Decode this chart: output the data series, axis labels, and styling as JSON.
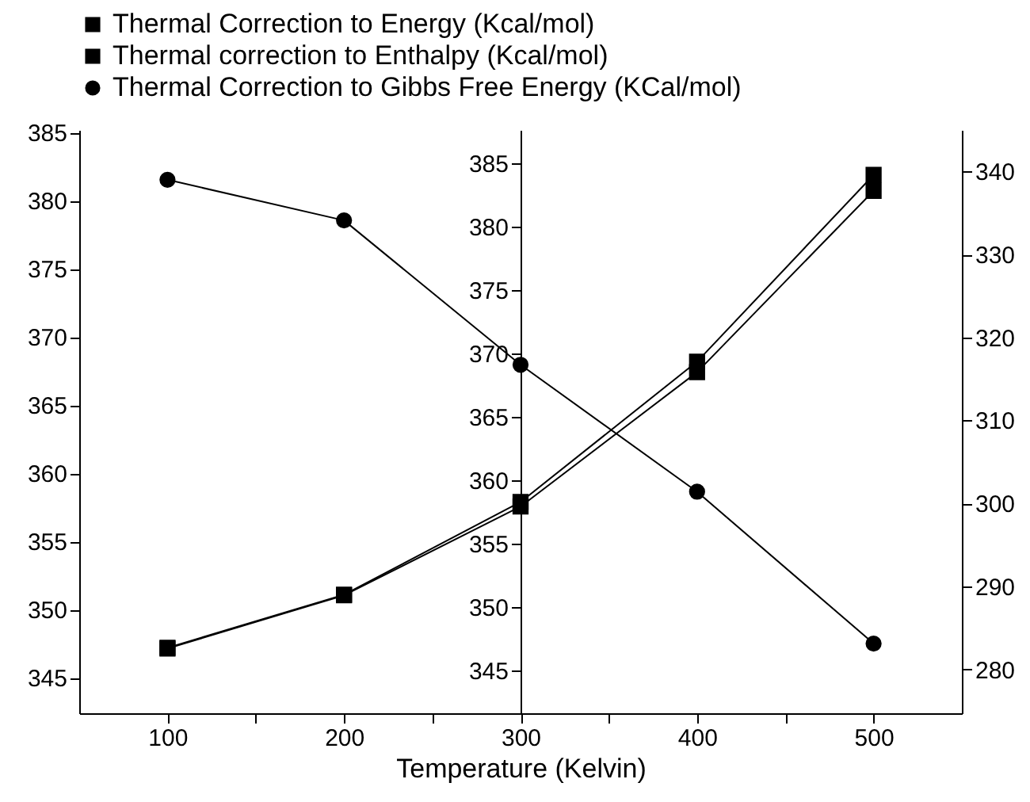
{
  "chart_data": {
    "type": "line",
    "xlabel": "Temperature (Kelvin)",
    "x": [
      100,
      200,
      300,
      400,
      500
    ],
    "xlim": [
      50,
      550
    ],
    "xticks": [
      100,
      {
        "value": 150,
        "label": null
      },
      200,
      {
        "value": 250,
        "label": null
      },
      300,
      {
        "value": 350,
        "label": null
      },
      400,
      {
        "value": 450,
        "label": null
      },
      500
    ],
    "ylim": [
      342.4,
      385.2
    ],
    "yticks": [
      345,
      350,
      355,
      360,
      365,
      370,
      375,
      380,
      385
    ],
    "y2lim": [
      341.6,
      387.6
    ],
    "y2ticks": [
      345,
      350,
      355,
      360,
      365,
      370,
      375,
      380,
      385
    ],
    "y3lim": [
      274.7,
      345
    ],
    "y3ticks": [
      280,
      290,
      300,
      310,
      320,
      330,
      340
    ],
    "series": [
      {
        "name": "Thermal Correction to Energy (Kcal/mol)",
        "color": "#000000",
        "marker": "square",
        "axis": "y",
        "values": [
          347.2,
          351.1,
          357.9,
          368.2,
          381.9
        ]
      },
      {
        "name": "Thermal correction to Enthalpy (Kcal/mol)",
        "color": "#000000",
        "marker": "square",
        "axis": "y2",
        "values": [
          346.7,
          350.9,
          357.9,
          368.5,
          382.8
        ]
      },
      {
        "name": "Thermal Correction to Gibbs Free Energy (KCal/mol)",
        "color": "#000000",
        "marker": "circle",
        "axis": "y3",
        "values": [
          339.0,
          334.1,
          316.7,
          301.4,
          283.1
        ]
      }
    ],
    "legend": "top",
    "grid": false,
    "line_style": "solid"
  }
}
